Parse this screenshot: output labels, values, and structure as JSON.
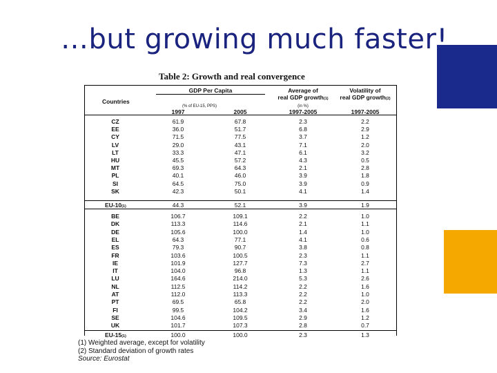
{
  "slide": {
    "title": "…but growing much faster!"
  },
  "table": {
    "title": "Table 2: Growth and real convergence",
    "headers": {
      "countries": "Countries",
      "gdp_per_capita": "GDP Per Capita",
      "gdp_unit": "(% of EU-15, PPS)",
      "avg_growth_line1": "Average of",
      "avg_growth_line2": "real GDP growth",
      "avg_growth_note": "(1)",
      "avg_growth_unit": "(in %)",
      "volatility_line1": "Volatility of",
      "volatility_line2": "real GDP growth",
      "volatility_note": "(2)",
      "year_1997": "1997",
      "year_2005": "2005",
      "period_avg": "1997-2005",
      "period_vol": "1997-2005"
    },
    "group1": [
      [
        "CZ",
        "61.9",
        "67.8",
        "2.3",
        "2.2"
      ],
      [
        "EE",
        "36.0",
        "51.7",
        "6.8",
        "2.9"
      ],
      [
        "CY",
        "71.5",
        "77.5",
        "3.7",
        "1.2"
      ],
      [
        "LV",
        "29.0",
        "43.1",
        "7.1",
        "2.0"
      ],
      [
        "LT",
        "33.3",
        "47.1",
        "6.1",
        "3.2"
      ],
      [
        "HU",
        "45.5",
        "57.2",
        "4.3",
        "0.5"
      ],
      [
        "MT",
        "69.3",
        "64.3",
        "2.1",
        "2.8"
      ],
      [
        "PL",
        "40.1",
        "46.0",
        "3.9",
        "1.8"
      ],
      [
        "SI",
        "64.5",
        "75.0",
        "3.9",
        "0.9"
      ],
      [
        "SK",
        "42.3",
        "50.1",
        "4.1",
        "1.4"
      ]
    ],
    "eu10": {
      "label": "EU-10",
      "note": "(1)",
      "values": [
        "44.3",
        "52.1",
        "3.9",
        "1.9"
      ]
    },
    "group2": [
      [
        "BE",
        "106.7",
        "109.1",
        "2.2",
        "1.0"
      ],
      [
        "DK",
        "113.3",
        "114.6",
        "2.1",
        "1.1"
      ],
      [
        "DE",
        "105.6",
        "100.0",
        "1.4",
        "1.0"
      ],
      [
        "EL",
        "64.3",
        "77.1",
        "4.1",
        "0.6"
      ],
      [
        "ES",
        "79.3",
        "90.7",
        "3.8",
        "0.8"
      ],
      [
        "FR",
        "103.6",
        "100.5",
        "2.3",
        "1.1"
      ],
      [
        "IE",
        "101.9",
        "127.7",
        "7.3",
        "2.7"
      ],
      [
        "IT",
        "104.0",
        "96.8",
        "1.3",
        "1.1"
      ],
      [
        "LU",
        "164.6",
        "214.0",
        "5.3",
        "2.6"
      ],
      [
        "NL",
        "112.5",
        "114.2",
        "2.2",
        "1.6"
      ],
      [
        "AT",
        "112.0",
        "113.3",
        "2.2",
        "1.0"
      ],
      [
        "PT",
        "69.5",
        "65.8",
        "2.2",
        "2.0"
      ],
      [
        "FI",
        "99.5",
        "104.2",
        "3.4",
        "1.6"
      ],
      [
        "SE",
        "104.6",
        "109.5",
        "2.9",
        "1.2"
      ],
      [
        "UK",
        "101.7",
        "107.3",
        "2.8",
        "0.7"
      ]
    ],
    "eu15": {
      "label": "EU-15",
      "note": "(1)",
      "values": [
        "100.0",
        "100.0",
        "2.3",
        "1.3"
      ]
    },
    "notes": [
      "(1) Weighted average, except for volatility",
      "(2) Standard deviation of growth rates",
      "Source: Eurostat"
    ]
  }
}
